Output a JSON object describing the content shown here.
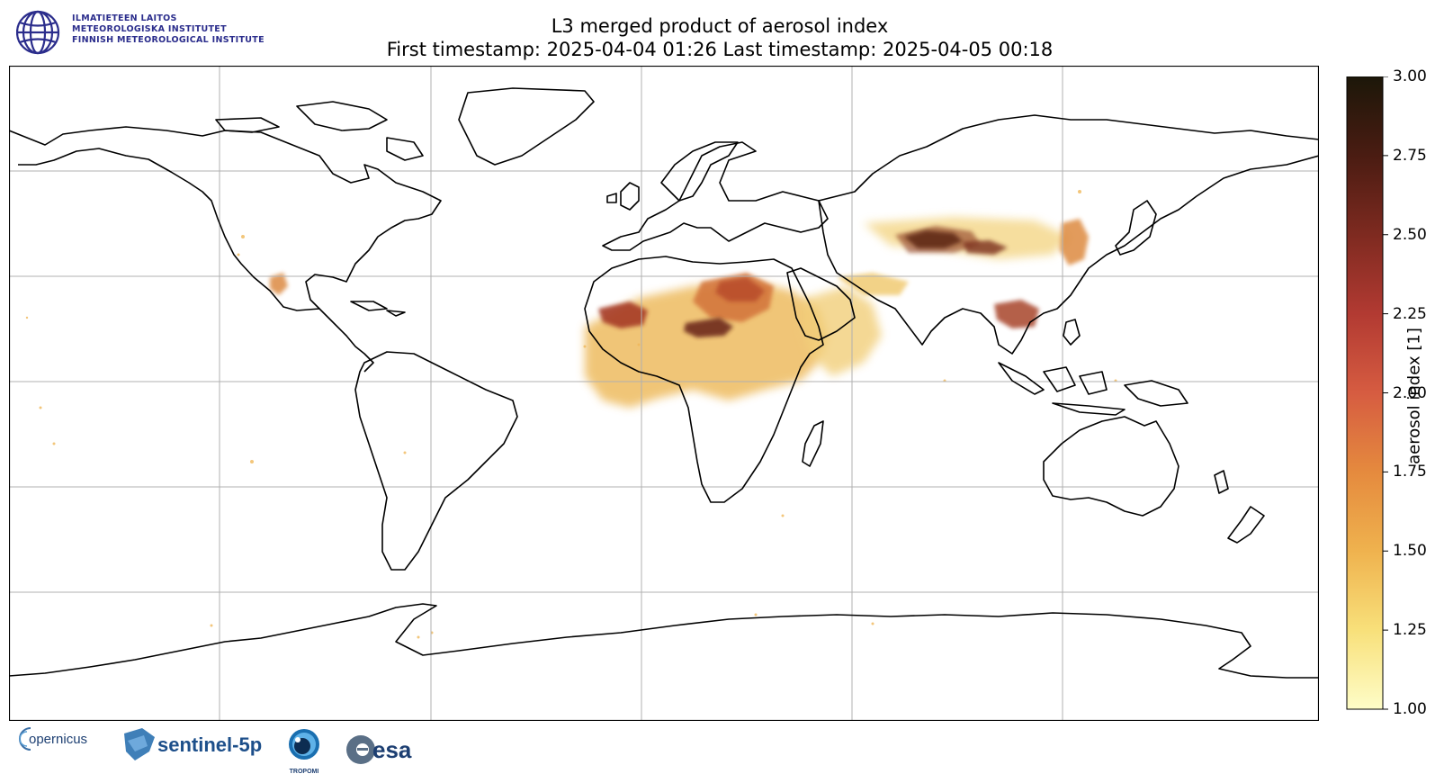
{
  "header": {
    "title": "L3 merged product of aerosol index",
    "subtitle": "First timestamp: 2025-04-04 01:26   Last timestamp: 2025-04-05 00:18"
  },
  "institute": {
    "lines": [
      "ILMATIETEEN LAITOS",
      "METEOROLOGISKA INSTITUTET",
      "FINNISH METEOROLOGICAL INSTITUTE"
    ],
    "color": "#2b2d8c"
  },
  "colorbar": {
    "label": "aerosol index [1]",
    "min": 1.0,
    "max": 3.0,
    "ticks": [
      "1.00",
      "1.25",
      "1.50",
      "1.75",
      "2.00",
      "2.25",
      "2.50",
      "2.75",
      "3.00"
    ],
    "colors": [
      "#fefdc8",
      "#f8e07a",
      "#efb24e",
      "#e58a3e",
      "#d65c41",
      "#b23a32",
      "#7e2a20",
      "#4a1c12",
      "#1c1709"
    ]
  },
  "map": {
    "grid": {
      "lon_step": 60,
      "lat_step": 30
    },
    "plumes": [
      {
        "name": "sahara-west",
        "lon": -8,
        "lat": 19,
        "value": 2.6
      },
      {
        "name": "sahara-central",
        "lon": 14,
        "lat": 26,
        "value": 2.4
      },
      {
        "name": "sahel",
        "lon": 12,
        "lat": 15,
        "value": 2.2
      },
      {
        "name": "arabia",
        "lon": 46,
        "lat": 22,
        "value": 1.6
      },
      {
        "name": "taklamakan",
        "lon": 83,
        "lat": 40,
        "value": 3.0
      },
      {
        "name": "mongolia",
        "lon": 100,
        "lat": 40,
        "value": 2.3
      },
      {
        "name": "north-china",
        "lon": 116,
        "lat": 40,
        "value": 1.9
      },
      {
        "name": "southeast-asia",
        "lon": 103,
        "lat": 20,
        "value": 2.3
      },
      {
        "name": "mexico",
        "lon": -103,
        "lat": 25,
        "value": 1.8
      }
    ]
  },
  "footer": {
    "logos": [
      "copernicus",
      "sentinel-5p",
      "TROPOMI",
      "esa"
    ],
    "copernicus_text": "opernicus",
    "sentinel_text": "sentinel-5p",
    "tropomi_text": "TROPOMI",
    "esa_text": "esa"
  }
}
